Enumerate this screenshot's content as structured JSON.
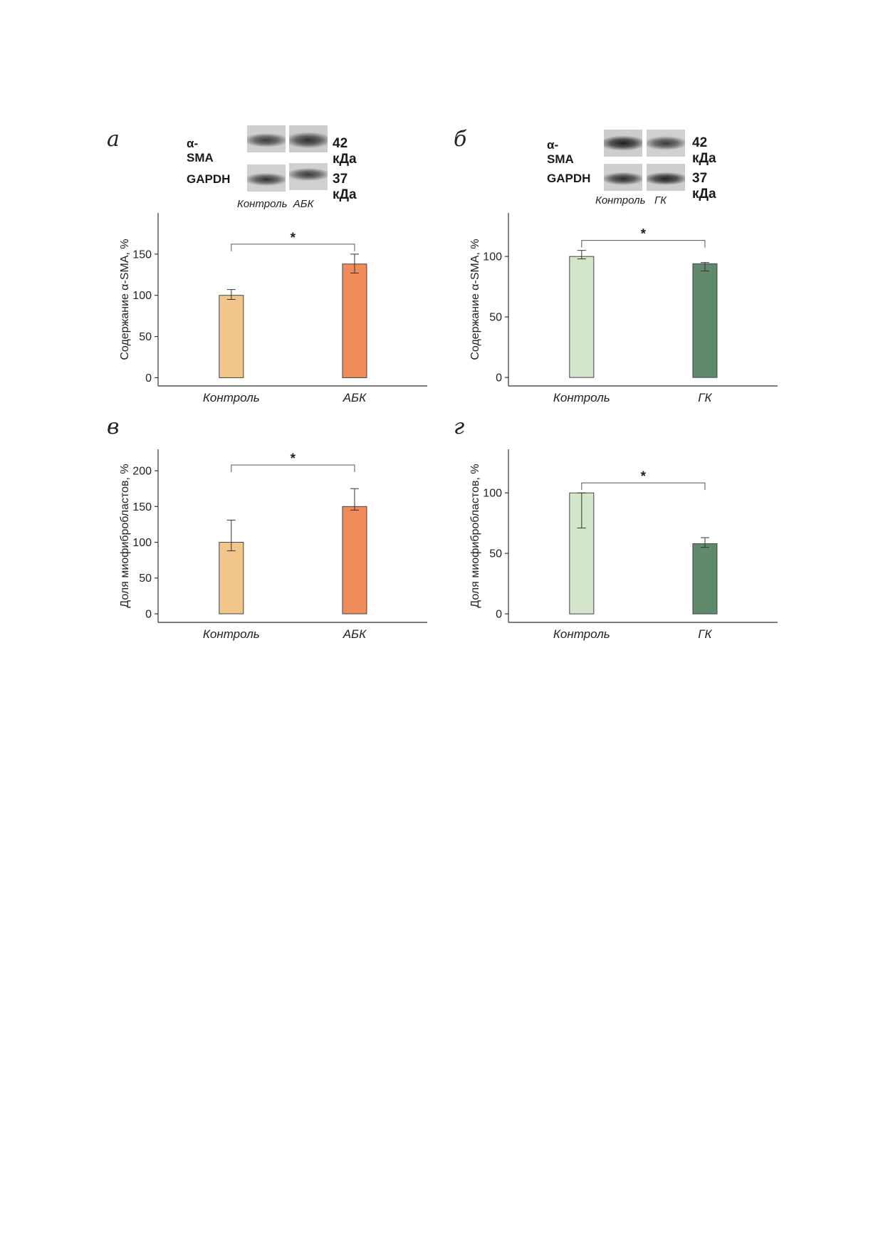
{
  "panels": [
    {
      "letter": "а"
    },
    {
      "letter": "б"
    },
    {
      "letter": "в"
    },
    {
      "letter": "г"
    }
  ],
  "blots": [
    {
      "protein_label": "α-SMA",
      "protein_mw": "42 кДа",
      "loading_label": "GAPDH",
      "loading_mw": "37 кДа",
      "caption": "Контроль  АБК"
    },
    {
      "protein_label": "α-SMA",
      "protein_mw": "42 кДа",
      "loading_label": "GAPDH",
      "loading_mw": "37 кДа",
      "caption": "Контроль   ГК"
    }
  ],
  "chart_data": [
    {
      "type": "bar",
      "categories": [
        "Контроль",
        "АБК"
      ],
      "values": [
        100,
        138
      ],
      "err_low": [
        95,
        127
      ],
      "err_high": [
        107,
        150
      ],
      "ylabel": "Содержание α-SMA, %",
      "yticks": [
        0,
        50,
        100,
        150
      ],
      "ylim": [
        -10,
        200
      ],
      "colors": [
        "#f2c58a",
        "#ef8c5a"
      ],
      "significance": "*"
    },
    {
      "type": "bar",
      "categories": [
        "Контроль",
        "ГК"
      ],
      "values": [
        100,
        94
      ],
      "err_low": [
        98,
        88
      ],
      "err_high": [
        105,
        95
      ],
      "ylabel": "Содержание α-SMA, %",
      "yticks": [
        0,
        50,
        100
      ],
      "ylim": [
        -7,
        136
      ],
      "colors": [
        "#d3e6cb",
        "#5f8a6b"
      ],
      "significance": "*"
    },
    {
      "type": "bar",
      "categories": [
        "Контроль",
        "АБК"
      ],
      "values": [
        100,
        150
      ],
      "err_low": [
        88,
        145
      ],
      "err_high": [
        131,
        175
      ],
      "ylabel": "Доля миофибробластов, %",
      "yticks": [
        0,
        50,
        100,
        150,
        200
      ],
      "ylim": [
        -12,
        230
      ],
      "colors": [
        "#f2c58a",
        "#ef8c5a"
      ],
      "significance": "*"
    },
    {
      "type": "bar",
      "categories": [
        "Контроль",
        "ГК"
      ],
      "values": [
        100,
        58
      ],
      "err_low": [
        71,
        55
      ],
      "err_high": [
        100,
        63
      ],
      "ylabel": "Доля миофибробластов, %",
      "yticks": [
        0,
        50,
        100
      ],
      "ylim": [
        -7,
        136
      ],
      "colors": [
        "#d3e6cb",
        "#5f8a6b"
      ],
      "significance": "*"
    }
  ]
}
